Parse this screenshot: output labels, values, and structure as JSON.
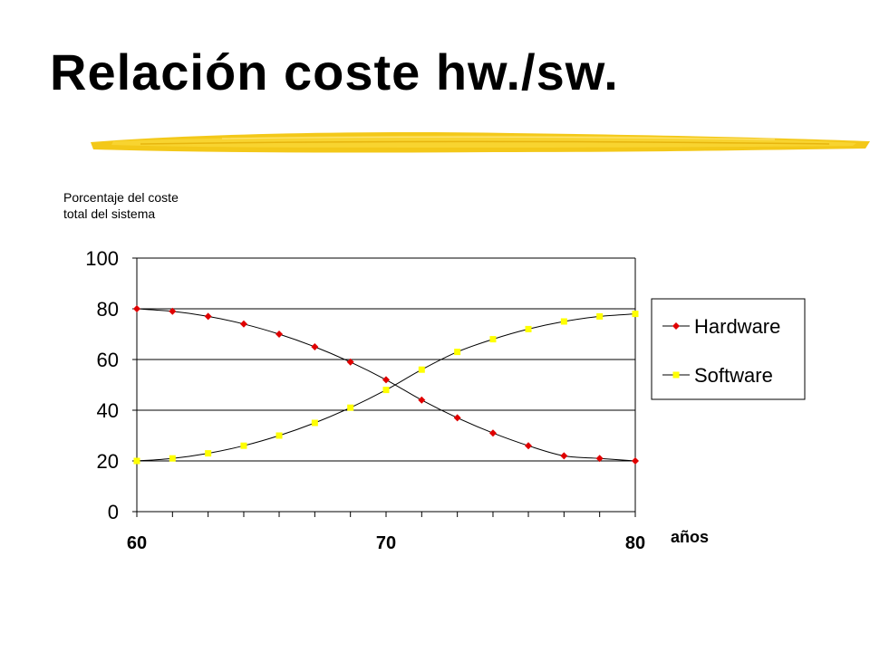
{
  "slide": {
    "title": "Relación coste hw./sw.",
    "accent_color": "#F2C200"
  },
  "chart_data": {
    "type": "line",
    "title": "",
    "ylabel_lines": [
      "Porcentaje del coste",
      "total del sistema"
    ],
    "xlabel": "años",
    "xlim": [
      60,
      80
    ],
    "ylim": [
      0,
      100
    ],
    "x_ticks": [
      "60",
      "70",
      "80"
    ],
    "x_tick_values": [
      60,
      70,
      80
    ],
    "y_ticks": [
      "0",
      "20",
      "40",
      "60",
      "80",
      "100"
    ],
    "y_tick_values": [
      0,
      20,
      40,
      60,
      80,
      100
    ],
    "grid": "horizontal",
    "legend_position": "right",
    "x": [
      60,
      61.43,
      62.86,
      64.29,
      65.71,
      67.14,
      68.57,
      70,
      71.43,
      72.86,
      74.29,
      75.71,
      77.14,
      78.57,
      80
    ],
    "series": [
      {
        "name": "Hardware",
        "color": "#E00000",
        "marker": "diamond",
        "values": [
          80,
          79,
          77,
          74,
          70,
          65,
          59,
          52,
          44,
          37,
          31,
          26,
          22,
          21,
          20
        ]
      },
      {
        "name": "Software",
        "color": "#FFFF00",
        "marker": "square",
        "values": [
          20,
          21,
          23,
          26,
          30,
          35,
          41,
          48,
          56,
          63,
          68,
          72,
          75,
          77,
          78
        ]
      }
    ]
  }
}
